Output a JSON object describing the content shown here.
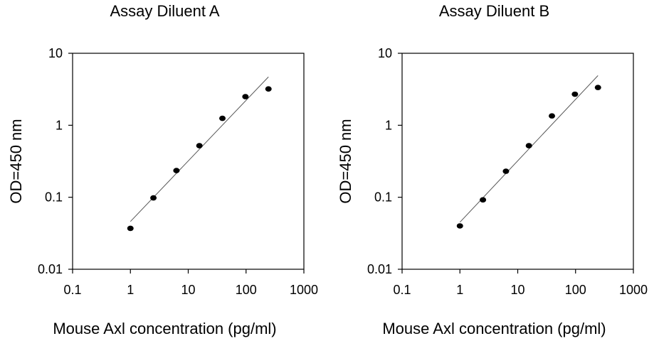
{
  "chart_data": [
    {
      "type": "scatter",
      "title": "Assay Diluent A",
      "xlabel": "Mouse Axl concentration (pg/ml)",
      "ylabel": "OD=450 nm",
      "x_scale": "log",
      "y_scale": "log",
      "xlim": [
        0.1,
        1000
      ],
      "ylim": [
        0.01,
        10
      ],
      "x_ticks": [
        "0.1",
        "1",
        "10",
        "100",
        "1000"
      ],
      "y_ticks": [
        "0.01",
        "0.1",
        "1",
        "10"
      ],
      "grid": false,
      "points": [
        {
          "x": 1,
          "y": 0.037
        },
        {
          "x": 2.5,
          "y": 0.098
        },
        {
          "x": 6.25,
          "y": 0.235
        },
        {
          "x": 15.6,
          "y": 0.52
        },
        {
          "x": 39,
          "y": 1.25
        },
        {
          "x": 97.5,
          "y": 2.5
        },
        {
          "x": 244,
          "y": 3.2
        }
      ],
      "fit_line": [
        {
          "x": 1,
          "y": 0.046
        },
        {
          "x": 244,
          "y": 4.7
        }
      ]
    },
    {
      "type": "scatter",
      "title": "Assay Diluent B",
      "xlabel": "Mouse Axl concentration (pg/ml)",
      "ylabel": "OD=450 nm",
      "x_scale": "log",
      "y_scale": "log",
      "xlim": [
        0.1,
        1000
      ],
      "ylim": [
        0.01,
        10
      ],
      "x_ticks": [
        "0.1",
        "1",
        "10",
        "100",
        "1000"
      ],
      "y_ticks": [
        "0.01",
        "0.1",
        "1",
        "10"
      ],
      "grid": false,
      "points": [
        {
          "x": 1,
          "y": 0.04
        },
        {
          "x": 2.5,
          "y": 0.092
        },
        {
          "x": 6.25,
          "y": 0.23
        },
        {
          "x": 15.6,
          "y": 0.52
        },
        {
          "x": 39,
          "y": 1.35
        },
        {
          "x": 97.5,
          "y": 2.7
        },
        {
          "x": 244,
          "y": 3.35
        }
      ],
      "fit_line": [
        {
          "x": 1,
          "y": 0.045
        },
        {
          "x": 244,
          "y": 4.9
        }
      ]
    }
  ]
}
